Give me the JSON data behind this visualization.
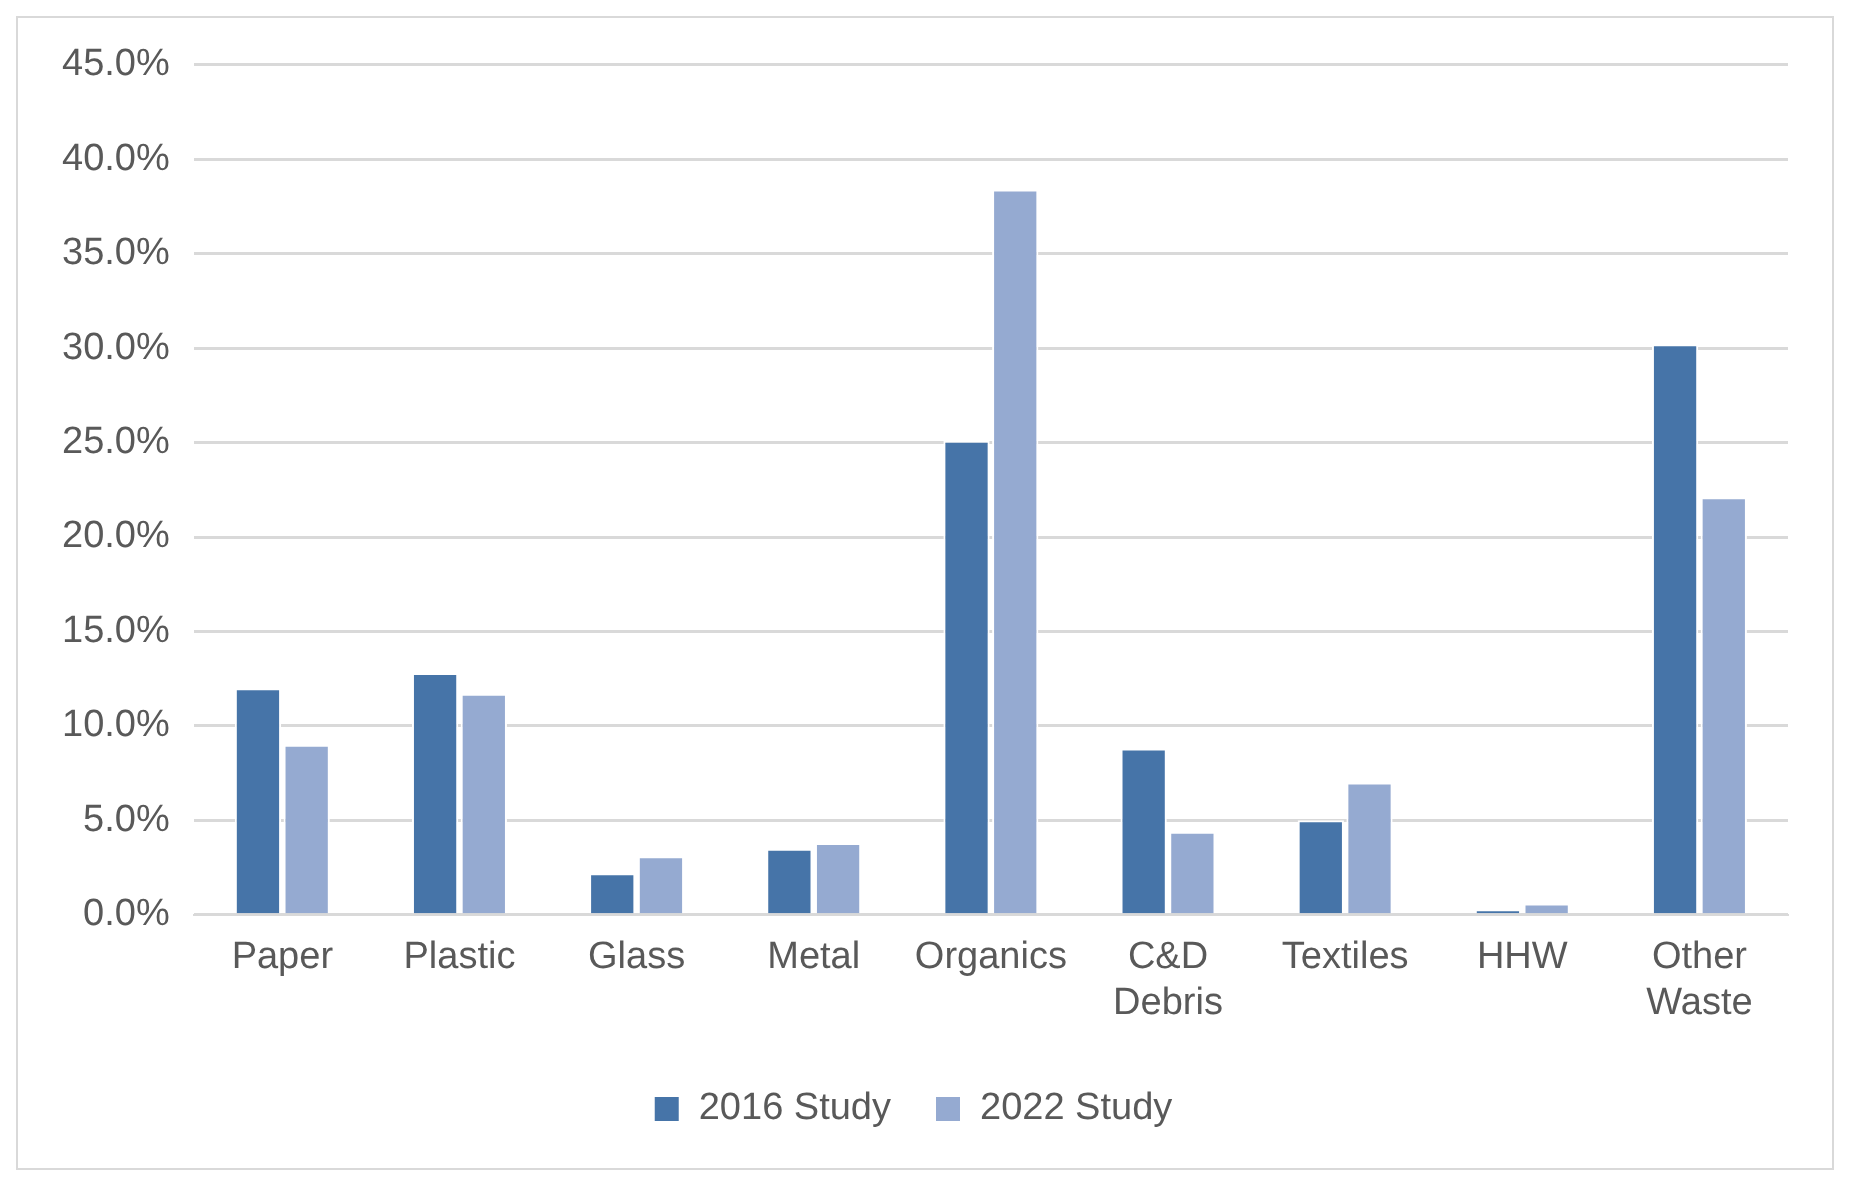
{
  "chart_data": {
    "type": "bar",
    "categories": [
      "Paper",
      "Plastic",
      "Glass",
      "Metal",
      "Organics",
      "C&D Debris",
      "Textiles",
      "HHW",
      "Other Waste"
    ],
    "series": [
      {
        "name": "2016 Study",
        "color": "#4674a8",
        "values": [
          12.0,
          12.8,
          2.2,
          3.5,
          25.1,
          8.8,
          5.0,
          0.3,
          30.2
        ]
      },
      {
        "name": "2022 Study",
        "color": "#95aad1",
        "values": [
          9.0,
          11.7,
          3.1,
          3.8,
          38.4,
          4.4,
          7.0,
          0.6,
          22.1
        ]
      }
    ],
    "ylim": [
      0,
      45
    ],
    "yticks": [
      {
        "value": 0,
        "label": "0.0%"
      },
      {
        "value": 5,
        "label": "5.0%"
      },
      {
        "value": 10,
        "label": "10.0%"
      },
      {
        "value": 15,
        "label": "15.0%"
      },
      {
        "value": 20,
        "label": "20.0%"
      },
      {
        "value": 25,
        "label": "25.0%"
      },
      {
        "value": 30,
        "label": "30.0%"
      },
      {
        "value": 35,
        "label": "35.0%"
      },
      {
        "value": 40,
        "label": "40.0%"
      },
      {
        "value": 45,
        "label": "45.0%"
      }
    ],
    "grid": "y",
    "legend": "bottom"
  }
}
